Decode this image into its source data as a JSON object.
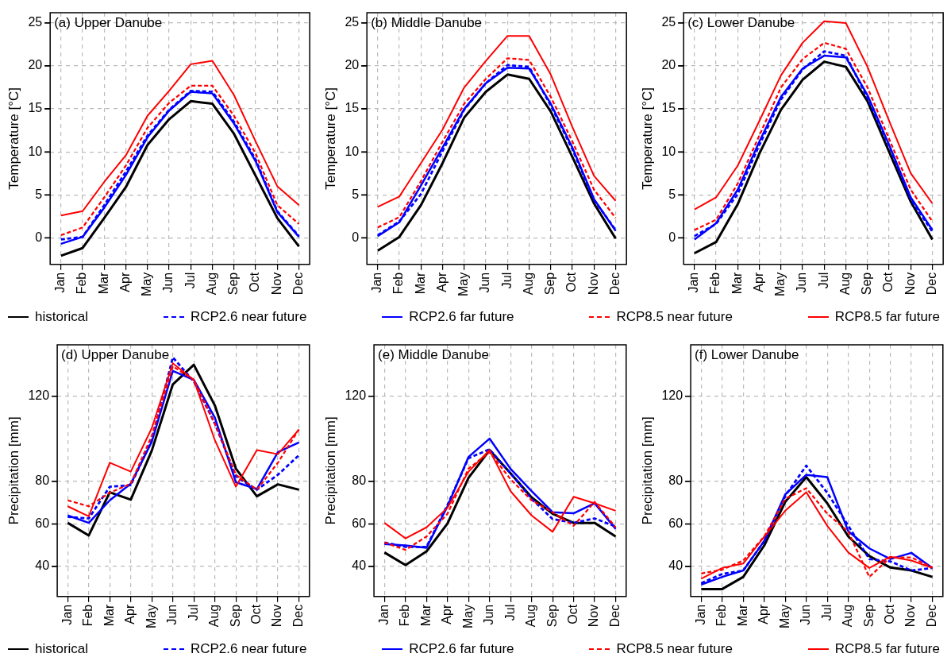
{
  "chart_data": [
    {
      "type": "line",
      "title": "(a) Upper Danube",
      "ylabel": "Temperature [°C]",
      "categories": [
        "Jan",
        "Feb",
        "Mar",
        "Apr",
        "May",
        "Jun",
        "Jul",
        "Aug",
        "Sep",
        "Oct",
        "Nov",
        "Dec"
      ],
      "ylim": [
        -3.1,
        26.2
      ],
      "yticks": [
        0,
        5,
        10,
        15,
        20,
        25
      ],
      "grid": true,
      "legend": "bottom",
      "series": [
        {
          "name": "historical",
          "color": "#000000",
          "values": [
            -2.1,
            -1.2,
            2.3,
            5.9,
            10.8,
            13.8,
            15.9,
            15.6,
            12.1,
            7.2,
            2.3,
            -1.0
          ]
        },
        {
          "name": "RCP2.6 near future",
          "color": "#0000ff",
          "line_style": "dashed",
          "values": [
            -0.2,
            0.1,
            3.8,
            7.7,
            11.9,
            14.9,
            17.1,
            17.0,
            13.5,
            9.1,
            3.1,
            0.2
          ]
        },
        {
          "name": "RCP2.6 far future",
          "color": "#0000ff",
          "values": [
            -0.7,
            0.1,
            3.5,
            7.3,
            11.7,
            14.8,
            17.0,
            16.8,
            13.3,
            8.9,
            3.0,
            0.1
          ]
        },
        {
          "name": "RCP8.5 near future",
          "color": "#ff0000",
          "line_style": "dashed",
          "values": [
            0.3,
            1.2,
            4.7,
            8.4,
            12.8,
            15.7,
            17.7,
            17.7,
            14.2,
            9.8,
            3.8,
            1.6
          ]
        },
        {
          "name": "RCP8.5 far future",
          "color": "#ff0000",
          "values": [
            2.6,
            3.1,
            6.5,
            9.6,
            14.2,
            17.1,
            20.2,
            20.6,
            16.6,
            11.2,
            6.0,
            3.8
          ]
        }
      ]
    },
    {
      "type": "line",
      "title": "(b) Middle Danube",
      "ylabel": "Temperature [°C]",
      "categories": [
        "Jan",
        "Feb",
        "Mar",
        "Apr",
        "May",
        "Jun",
        "Jul",
        "Aug",
        "Sep",
        "Oct",
        "Nov",
        "Dec"
      ],
      "ylim": [
        -3.1,
        26.2
      ],
      "yticks": [
        0,
        5,
        10,
        15,
        20,
        25
      ],
      "grid": true,
      "series": [
        {
          "color": "#000000",
          "values": [
            -1.5,
            0.1,
            3.8,
            8.7,
            14.0,
            17.0,
            19.0,
            18.5,
            14.7,
            9.4,
            4.0,
            -0.1
          ]
        },
        {
          "color": "#0000ff",
          "line_style": "dashed",
          "values": [
            0.3,
            1.9,
            5.1,
            10.1,
            14.9,
            18.0,
            20.1,
            19.9,
            15.4,
            10.3,
            4.4,
            0.9
          ]
        },
        {
          "color": "#0000ff",
          "values": [
            0.2,
            1.8,
            6.1,
            10.5,
            15.0,
            18.0,
            19.8,
            19.7,
            15.6,
            10.5,
            4.5,
            0.8
          ]
        },
        {
          "color": "#ff0000",
          "line_style": "dashed",
          "values": [
            1.2,
            2.4,
            6.6,
            11.2,
            15.6,
            18.5,
            20.9,
            20.7,
            16.4,
            11.2,
            5.6,
            2.3
          ]
        },
        {
          "color": "#ff0000",
          "values": [
            3.6,
            4.8,
            8.7,
            12.6,
            17.5,
            20.6,
            23.5,
            23.5,
            19.0,
            12.9,
            7.2,
            4.3
          ]
        }
      ]
    },
    {
      "type": "line",
      "title": "(c) Lower Danube",
      "ylabel": "Temperature [°C]",
      "categories": [
        "Jan",
        "Feb",
        "Mar",
        "Apr",
        "May",
        "Jun",
        "Jul",
        "Aug",
        "Sep",
        "Oct",
        "Nov",
        "Dec"
      ],
      "ylim": [
        -3.1,
        26.2
      ],
      "yticks": [
        0,
        5,
        10,
        15,
        20,
        25
      ],
      "grid": true,
      "series": [
        {
          "color": "#000000",
          "values": [
            -1.8,
            -0.5,
            3.9,
            9.8,
            14.9,
            18.4,
            20.5,
            19.9,
            15.9,
            10.0,
            4.2,
            -0.2
          ]
        },
        {
          "color": "#0000ff",
          "line_style": "dashed",
          "values": [
            0.2,
            1.6,
            5.1,
            10.8,
            16.1,
            19.6,
            21.7,
            21.2,
            16.3,
            10.7,
            4.5,
            0.7
          ]
        },
        {
          "color": "#0000ff",
          "values": [
            -0.2,
            1.7,
            5.6,
            11.2,
            16.4,
            19.7,
            21.2,
            21.0,
            16.6,
            10.8,
            4.7,
            0.9
          ]
        },
        {
          "color": "#ff0000",
          "line_style": "dashed",
          "values": [
            0.9,
            2.1,
            6.3,
            11.9,
            17.5,
            20.8,
            22.7,
            22.0,
            17.5,
            11.5,
            5.6,
            1.9
          ]
        },
        {
          "color": "#ff0000",
          "values": [
            3.3,
            4.7,
            8.4,
            13.6,
            18.9,
            22.7,
            25.2,
            25.0,
            19.9,
            13.6,
            7.5,
            4.0
          ]
        }
      ]
    },
    {
      "type": "line",
      "title": "(d) Upper Danube",
      "ylabel": "Precipitation [mm]",
      "categories": [
        "Jan",
        "Feb",
        "Mar",
        "Apr",
        "May",
        "Jun",
        "Jul",
        "Aug",
        "Sep",
        "Oct",
        "Nov",
        "Dec"
      ],
      "ylim": [
        25.9,
        144.2
      ],
      "yticks": [
        120,
        80,
        60,
        40
      ],
      "grid": true,
      "legend": "bottom",
      "series": [
        {
          "name": "historical",
          "color": "#000000",
          "values": [
            60.5,
            54.6,
            74.9,
            71.4,
            94.5,
            125.6,
            134.8,
            115.7,
            86.0,
            73.0,
            78.6,
            76.1
          ]
        },
        {
          "name": "RCP2.6 near future",
          "color": "#0000ff",
          "line_style": "dashed",
          "values": [
            63.3,
            62.6,
            77.5,
            78.2,
            99.4,
            138.3,
            127.0,
            107.2,
            82.4,
            76.1,
            83.1,
            92.3
          ]
        },
        {
          "name": "RCP2.6 far future",
          "color": "#0000ff",
          "values": [
            64.0,
            60.5,
            71.1,
            78.9,
            98.7,
            131.9,
            127.7,
            110.0,
            79.6,
            76.4,
            93.7,
            98.3
          ]
        },
        {
          "name": "RCP8.5 near future",
          "color": "#ff0000",
          "line_style": "dashed",
          "values": [
            71.1,
            68.3,
            74.7,
            78.9,
            101.5,
            134.1,
            127.7,
            107.2,
            83.1,
            76.1,
            88.8,
            104.4
          ]
        },
        {
          "name": "RCP8.5 far future",
          "color": "#ff0000",
          "values": [
            68.3,
            63.6,
            88.8,
            84.6,
            105.1,
            135.5,
            127.7,
            99.4,
            77.5,
            94.7,
            92.8,
            104.4
          ]
        }
      ]
    },
    {
      "type": "line",
      "title": "(e) Middle Danube",
      "ylabel": "Precipitation [mm]",
      "categories": [
        "Jan",
        "Feb",
        "Mar",
        "Apr",
        "May",
        "Jun",
        "Jul",
        "Aug",
        "Sep",
        "Oct",
        "Nov",
        "Dec"
      ],
      "ylim": [
        25.9,
        144.2
      ],
      "yticks": [
        120,
        80,
        60,
        40
      ],
      "grid": true,
      "series": [
        {
          "color": "#000000",
          "values": [
            46.6,
            40.7,
            47.1,
            60.2,
            81.7,
            94.7,
            83.8,
            72.5,
            64.8,
            60.5,
            60.5,
            54.1
          ]
        },
        {
          "color": "#0000ff",
          "line_style": "dashed",
          "values": [
            51.3,
            49.2,
            49.2,
            69.0,
            90.9,
            95.1,
            83.8,
            71.8,
            62.3,
            60.5,
            62.6,
            58.8
          ]
        },
        {
          "color": "#0000ff",
          "values": [
            50.6,
            49.9,
            48.8,
            68.3,
            91.5,
            100.1,
            85.9,
            75.4,
            65.5,
            65.0,
            69.7,
            57.7
          ]
        },
        {
          "color": "#ff0000",
          "line_style": "dashed",
          "values": [
            51.3,
            47.8,
            54.1,
            64.8,
            86.0,
            93.7,
            81.0,
            71.1,
            65.5,
            59.1,
            70.4,
            58.4
          ]
        },
        {
          "color": "#ff0000",
          "values": [
            60.5,
            53.2,
            58.4,
            67.6,
            84.6,
            94.7,
            75.4,
            64.0,
            56.3,
            72.8,
            69.7,
            66.2
          ]
        }
      ]
    },
    {
      "type": "line",
      "title": "(f) Lower Danube",
      "ylabel": "Precipitation [mm]",
      "categories": [
        "Jan",
        "Feb",
        "Mar",
        "Apr",
        "May",
        "Jun",
        "Jul",
        "Aug",
        "Sep",
        "Oct",
        "Nov",
        "Dec"
      ],
      "ylim": [
        25.9,
        144.2
      ],
      "yticks": [
        120,
        80,
        60,
        40
      ],
      "grid": true,
      "series": [
        {
          "color": "#000000",
          "values": [
            29.4,
            29.4,
            35.1,
            49.9,
            70.4,
            82.0,
            69.7,
            54.1,
            44.9,
            39.5,
            38.1,
            35.1
          ]
        },
        {
          "color": "#0000ff",
          "line_style": "dashed",
          "values": [
            32.2,
            36.5,
            38.1,
            52.0,
            73.2,
            87.4,
            74.6,
            59.1,
            43.5,
            42.4,
            38.1,
            39.3
          ]
        },
        {
          "color": "#0000ff",
          "values": [
            31.5,
            35.1,
            38.1,
            52.0,
            73.9,
            83.1,
            82.0,
            56.5,
            48.5,
            43.5,
            46.4,
            39.3
          ]
        },
        {
          "color": "#ff0000",
          "line_style": "dashed",
          "values": [
            36.7,
            38.5,
            42.8,
            54.1,
            71.8,
            76.8,
            64.8,
            56.3,
            35.1,
            44.3,
            44.3,
            39.5
          ]
        },
        {
          "color": "#ff0000",
          "values": [
            34.3,
            39.3,
            41.4,
            54.1,
            66.2,
            74.9,
            59.1,
            46.6,
            39.3,
            44.6,
            42.8,
            39.3
          ]
        }
      ]
    }
  ]
}
